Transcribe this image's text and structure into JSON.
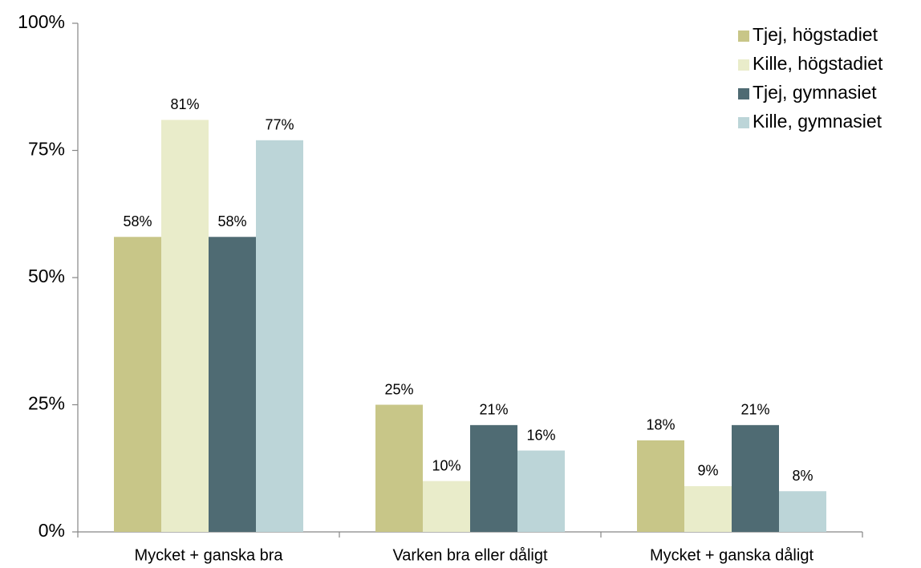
{
  "chart_data": {
    "type": "bar",
    "categories": [
      "Mycket + ganska bra",
      "Varken bra eller dåligt",
      "Mycket + ganska dåligt"
    ],
    "series": [
      {
        "name": "Tjej, högstadiet",
        "color": "#c8c688",
        "values": [
          58,
          25,
          18
        ]
      },
      {
        "name": "Kille, högstadiet",
        "color": "#e9ecca",
        "values": [
          81,
          10,
          9
        ]
      },
      {
        "name": "Tjej, gymnasiet",
        "color": "#4f6b73",
        "values": [
          58,
          21,
          21
        ]
      },
      {
        "name": "Kille, gymnasiet",
        "color": "#bcd5d8",
        "values": [
          77,
          16,
          8
        ]
      }
    ],
    "ylim": [
      0,
      100
    ],
    "yticks": [
      {
        "value": 0,
        "label": "0%"
      },
      {
        "value": 25,
        "label": "25%"
      },
      {
        "value": 50,
        "label": "50%"
      },
      {
        "value": 75,
        "label": "75%"
      },
      {
        "value": 100,
        "label": "100%"
      }
    ],
    "value_labels": [
      [
        "58%",
        "25%",
        "18%"
      ],
      [
        "81%",
        "10%",
        "9%"
      ],
      [
        "58%",
        "21%",
        "21%"
      ],
      [
        "77%",
        "16%",
        "8%"
      ]
    ],
    "legend": "upper right",
    "grid": false
  }
}
